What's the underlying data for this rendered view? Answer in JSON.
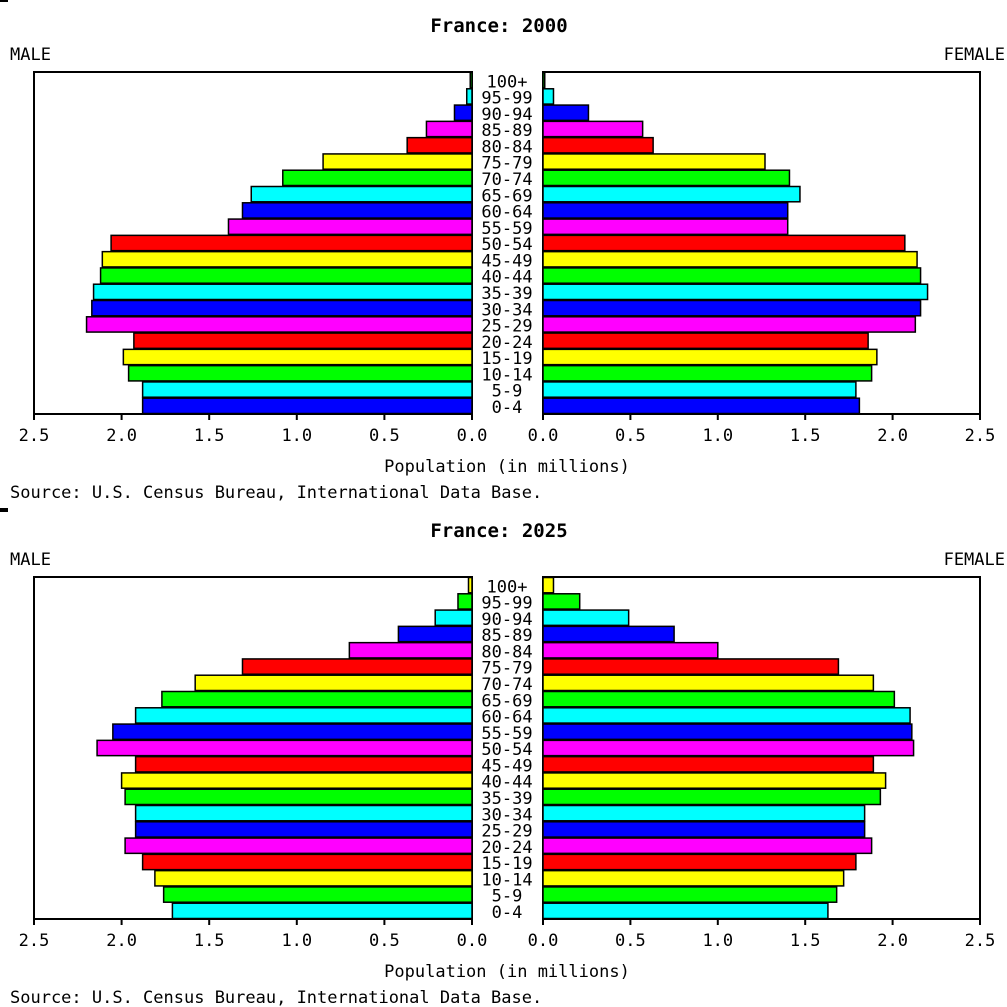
{
  "chart_data": [
    {
      "type": "bar",
      "title": "France: 2000",
      "left_label": "MALE",
      "right_label": "FEMALE",
      "xlabel": "Population (in millions)",
      "source": "Source: U.S. Census Bureau, International Data Base.",
      "xlim": [
        0,
        2.5
      ],
      "tick_labels": [
        "2.5",
        "2.0",
        "1.5",
        "1.0",
        "0.5",
        "0.0"
      ],
      "tick_labels_right": [
        "0.0",
        "0.5",
        "1.0",
        "1.5",
        "2.0",
        "2.5"
      ],
      "categories": [
        "0-4",
        "5-9",
        "10-14",
        "15-19",
        "20-24",
        "25-29",
        "30-34",
        "35-39",
        "40-44",
        "45-49",
        "50-54",
        "55-59",
        "60-64",
        "65-69",
        "70-74",
        "75-79",
        "80-84",
        "85-89",
        "90-94",
        "95-99",
        "100+"
      ],
      "colors": [
        "#0000ff",
        "#00ffff",
        "#00ff00",
        "#ffff00",
        "#ff0000",
        "#ff00ff",
        "#0000ff",
        "#00ffff",
        "#00ff00",
        "#ffff00",
        "#ff0000",
        "#ff00ff",
        "#0000ff",
        "#00ffff",
        "#00ff00",
        "#ffff00",
        "#ff0000",
        "#ff00ff",
        "#0000ff",
        "#00ffff",
        "#00ff00"
      ],
      "series": [
        {
          "name": "MALE",
          "values": [
            1.88,
            1.88,
            1.96,
            1.99,
            1.93,
            2.2,
            2.17,
            2.16,
            2.12,
            2.11,
            2.06,
            1.39,
            1.31,
            1.26,
            1.08,
            0.85,
            0.37,
            0.26,
            0.1,
            0.03,
            0.01
          ]
        },
        {
          "name": "FEMALE",
          "values": [
            1.81,
            1.79,
            1.88,
            1.91,
            1.86,
            2.13,
            2.16,
            2.2,
            2.16,
            2.14,
            2.07,
            1.4,
            1.4,
            1.47,
            1.41,
            1.27,
            0.63,
            0.57,
            0.26,
            0.06,
            0.01
          ]
        }
      ]
    },
    {
      "type": "bar",
      "title": "France: 2025",
      "left_label": "MALE",
      "right_label": "FEMALE",
      "xlabel": "Population (in millions)",
      "source": "Source: U.S. Census Bureau, International Data Base.",
      "xlim": [
        0,
        2.5
      ],
      "tick_labels": [
        "2.5",
        "2.0",
        "1.5",
        "1.0",
        "0.5",
        "0.0"
      ],
      "tick_labels_right": [
        "0.0",
        "0.5",
        "1.0",
        "1.5",
        "2.0",
        "2.5"
      ],
      "categories": [
        "0-4",
        "5-9",
        "10-14",
        "15-19",
        "20-24",
        "25-29",
        "30-34",
        "35-39",
        "40-44",
        "45-49",
        "50-54",
        "55-59",
        "60-64",
        "65-69",
        "70-74",
        "75-79",
        "80-84",
        "85-89",
        "90-94",
        "95-99",
        "100+"
      ],
      "colors": [
        "#00ffff",
        "#00ff00",
        "#ffff00",
        "#ff0000",
        "#ff00ff",
        "#0000ff",
        "#00ffff",
        "#00ff00",
        "#ffff00",
        "#ff0000",
        "#ff00ff",
        "#0000ff",
        "#00ffff",
        "#00ff00",
        "#ffff00",
        "#ff0000",
        "#ff00ff",
        "#0000ff",
        "#00ffff",
        "#00ff00",
        "#ffff00"
      ],
      "series": [
        {
          "name": "MALE",
          "values": [
            1.71,
            1.76,
            1.81,
            1.88,
            1.98,
            1.92,
            1.92,
            1.98,
            2.0,
            1.92,
            2.14,
            2.05,
            1.92,
            1.77,
            1.58,
            1.31,
            0.7,
            0.42,
            0.21,
            0.08,
            0.02
          ]
        },
        {
          "name": "FEMALE",
          "values": [
            1.63,
            1.68,
            1.72,
            1.79,
            1.88,
            1.84,
            1.84,
            1.93,
            1.96,
            1.89,
            2.12,
            2.11,
            2.1,
            2.01,
            1.89,
            1.69,
            1.0,
            0.75,
            0.49,
            0.21,
            0.06
          ]
        }
      ]
    }
  ]
}
